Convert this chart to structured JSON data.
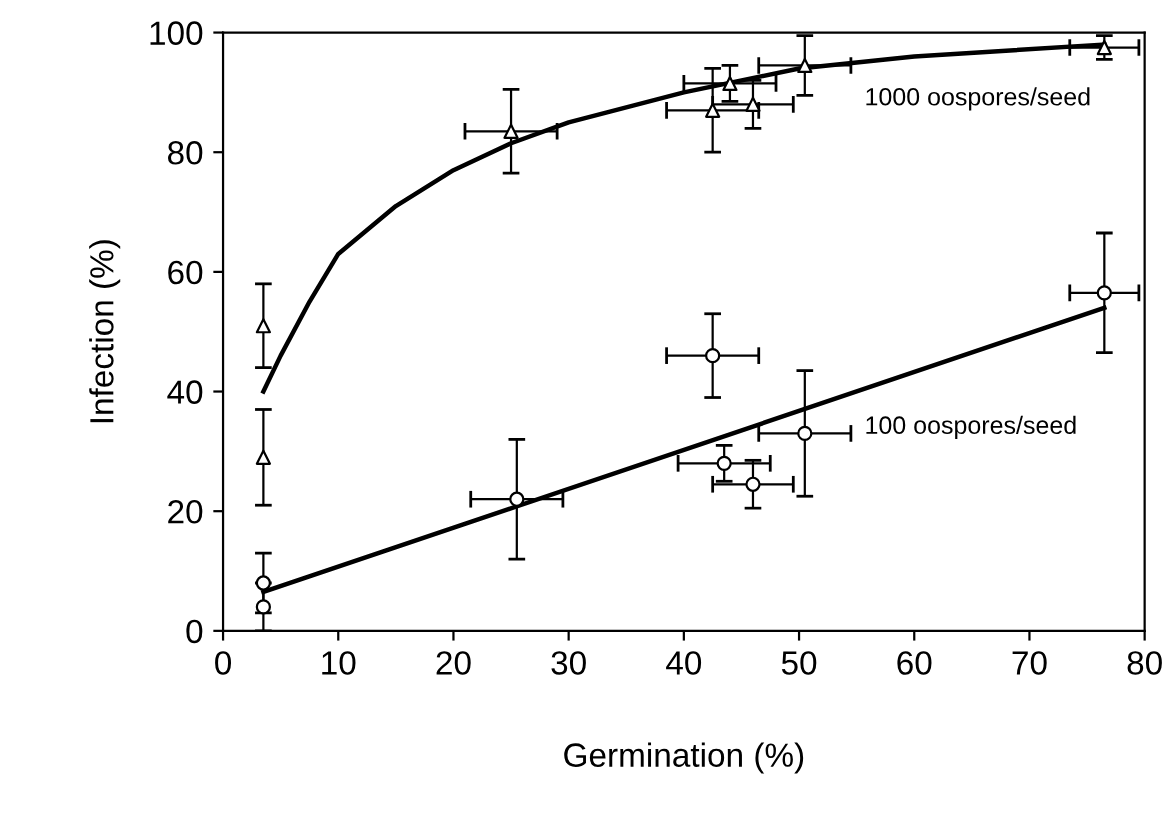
{
  "chart_data": {
    "type": "scatter",
    "xlabel": "Germination (%)",
    "ylabel": "Infection (%)",
    "xlim": [
      0,
      80
    ],
    "ylim": [
      0,
      100
    ],
    "xticks": [
      0,
      10,
      20,
      30,
      40,
      50,
      60,
      70,
      80
    ],
    "yticks": [
      0,
      20,
      40,
      60,
      80,
      100
    ],
    "grid": false,
    "legend": false,
    "series": [
      {
        "marker": "triangle",
        "color": "#000000",
        "x": [
          3.5,
          3.5,
          25,
          42.5,
          44,
          46,
          50.5,
          76.5
        ],
        "values": [
          51,
          29,
          83.5,
          87,
          91.5,
          88,
          94.5,
          97.5
        ],
        "errors": [
          7,
          8,
          7,
          7,
          3,
          4,
          5,
          2
        ],
        "xerrors": [
          null,
          null,
          4,
          4,
          4,
          3.5,
          4,
          3
        ]
      },
      {
        "marker": "circle",
        "color": "#000000",
        "x": [
          3.5,
          3.5,
          25.5,
          42.5,
          43.5,
          46,
          50.5,
          76.5
        ],
        "values": [
          8,
          4,
          22,
          46,
          28,
          24.5,
          33,
          56.5
        ],
        "errors": [
          5,
          4,
          10,
          7,
          3,
          4,
          10.5,
          10
        ],
        "xerrors": [
          null,
          null,
          4,
          4,
          4,
          3.5,
          4,
          3
        ]
      },
      {
        "type": "line",
        "name": "1000 oospores/seed",
        "marker": "none",
        "color": "#000000",
        "x": [
          3.5,
          5,
          7.5,
          10,
          15,
          20,
          25,
          30,
          40,
          50,
          60,
          76.5
        ],
        "values": [
          40,
          46,
          55,
          63,
          71,
          77,
          81.5,
          85,
          90,
          94,
          96,
          98
        ]
      },
      {
        "type": "line",
        "name": "100 oospores/seed",
        "marker": "none",
        "color": "#000000",
        "x": [
          3.5,
          76.5
        ],
        "values": [
          6.5,
          54
        ]
      }
    ]
  }
}
